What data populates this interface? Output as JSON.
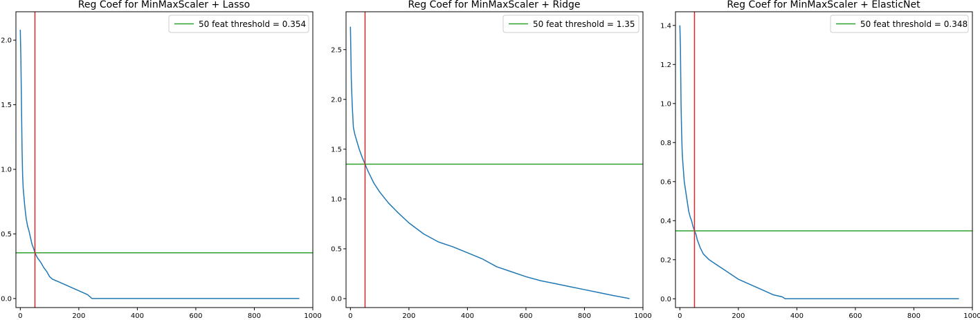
{
  "chart_data": [
    {
      "type": "line",
      "title": "Reg Coef for MinMaxScaler + Lasso",
      "xlabel": "",
      "ylabel": "",
      "xlim": [
        -15,
        1000
      ],
      "ylim": [
        -0.07,
        2.22
      ],
      "xticks": [
        0,
        200,
        400,
        600,
        800,
        1000
      ],
      "xtick_labels": [
        "0",
        "200",
        "400",
        "600",
        "800",
        "1000"
      ],
      "yticks": [
        0.0,
        0.5,
        1.0,
        1.5,
        2.0
      ],
      "ytick_labels": [
        "0.0",
        "0.5",
        "1.0",
        "1.5",
        "2.0"
      ],
      "grid": false,
      "legend_position": "top-right",
      "vline_x": 50,
      "hline": {
        "label": "50 feat threshold = 0.354",
        "y": 0.354
      },
      "series": [
        {
          "x": [
            0,
            2,
            4,
            6,
            8,
            10,
            15,
            20,
            25,
            30,
            35,
            40,
            45,
            50,
            55,
            60,
            70,
            80,
            90,
            100,
            110,
            130,
            150,
            170,
            190,
            210,
            230,
            240,
            245,
            300,
            400,
            500,
            600,
            700,
            800,
            900,
            954
          ],
          "y": [
            2.08,
            1.85,
            1.5,
            1.15,
            0.95,
            0.85,
            0.72,
            0.62,
            0.56,
            0.52,
            0.47,
            0.42,
            0.39,
            0.355,
            0.33,
            0.31,
            0.28,
            0.24,
            0.21,
            0.17,
            0.15,
            0.13,
            0.11,
            0.09,
            0.07,
            0.05,
            0.03,
            0.01,
            0.0,
            0.0,
            0.0,
            0.0,
            0.0,
            0.0,
            0.0,
            0.0,
            0.0
          ]
        }
      ]
    },
    {
      "type": "line",
      "title": "Reg Coef for MinMaxScaler + Ridge",
      "xlabel": "",
      "ylabel": "",
      "xlim": [
        -15,
        1000
      ],
      "ylim": [
        -0.09,
        2.88
      ],
      "xticks": [
        0,
        200,
        400,
        600,
        800,
        1000
      ],
      "xtick_labels": [
        "0",
        "200",
        "400",
        "600",
        "800",
        "1000"
      ],
      "yticks": [
        0.0,
        0.5,
        1.0,
        1.5,
        2.0,
        2.5
      ],
      "ytick_labels": [
        "0.0",
        "0.5",
        "1.0",
        "1.5",
        "2.0",
        "2.5"
      ],
      "grid": false,
      "legend_position": "top-right",
      "vline_x": 50,
      "hline": {
        "label": "50 feat threshold = 1.35",
        "y": 1.35
      },
      "series": [
        {
          "x": [
            0,
            3,
            6,
            10,
            15,
            20,
            30,
            40,
            50,
            60,
            80,
            100,
            130,
            160,
            200,
            250,
            300,
            350,
            400,
            450,
            500,
            550,
            600,
            650,
            700,
            750,
            800,
            850,
            900,
            954
          ],
          "y": [
            2.73,
            2.2,
            1.95,
            1.72,
            1.65,
            1.6,
            1.5,
            1.42,
            1.35,
            1.28,
            1.16,
            1.07,
            0.96,
            0.87,
            0.76,
            0.65,
            0.57,
            0.52,
            0.46,
            0.4,
            0.32,
            0.27,
            0.22,
            0.18,
            0.15,
            0.12,
            0.09,
            0.06,
            0.03,
            0.0
          ]
        }
      ]
    },
    {
      "type": "line",
      "title": "Reg Coef for MinMaxScaler + ElasticNet",
      "xlabel": "",
      "ylabel": "",
      "xlim": [
        -15,
        1000
      ],
      "ylim": [
        -0.045,
        1.47
      ],
      "xticks": [
        0,
        200,
        400,
        600,
        800,
        1000
      ],
      "xtick_labels": [
        "0",
        "200",
        "400",
        "600",
        "800",
        "1000"
      ],
      "yticks": [
        0.0,
        0.2,
        0.4,
        0.6,
        0.8,
        1.0,
        1.2,
        1.4
      ],
      "ytick_labels": [
        "0.0",
        "0.2",
        "0.4",
        "0.6",
        "0.8",
        "1.0",
        "1.2",
        "1.4"
      ],
      "grid": false,
      "legend_position": "top-right",
      "vline_x": 50,
      "hline": {
        "label": "50 feat threshold = 0.348",
        "y": 0.348
      },
      "series": [
        {
          "x": [
            0,
            2,
            4,
            6,
            8,
            10,
            15,
            20,
            25,
            30,
            35,
            40,
            45,
            50,
            55,
            60,
            70,
            80,
            100,
            120,
            150,
            180,
            200,
            230,
            260,
            290,
            320,
            350,
            360,
            400,
            500,
            600,
            700,
            800,
            900,
            954
          ],
          "y": [
            1.4,
            1.28,
            1.0,
            0.85,
            0.75,
            0.7,
            0.6,
            0.55,
            0.5,
            0.45,
            0.42,
            0.4,
            0.37,
            0.348,
            0.33,
            0.3,
            0.26,
            0.23,
            0.2,
            0.18,
            0.15,
            0.12,
            0.1,
            0.08,
            0.06,
            0.04,
            0.02,
            0.01,
            0.0,
            0.0,
            0.0,
            0.0,
            0.0,
            0.0,
            0.0,
            0.0
          ]
        }
      ]
    }
  ],
  "colors": {
    "series": "#1f77b4",
    "threshold_line": "#2ca02c",
    "vertical_marker": "#d62728",
    "legend_border": "#cccccc",
    "axes": "#000000"
  }
}
